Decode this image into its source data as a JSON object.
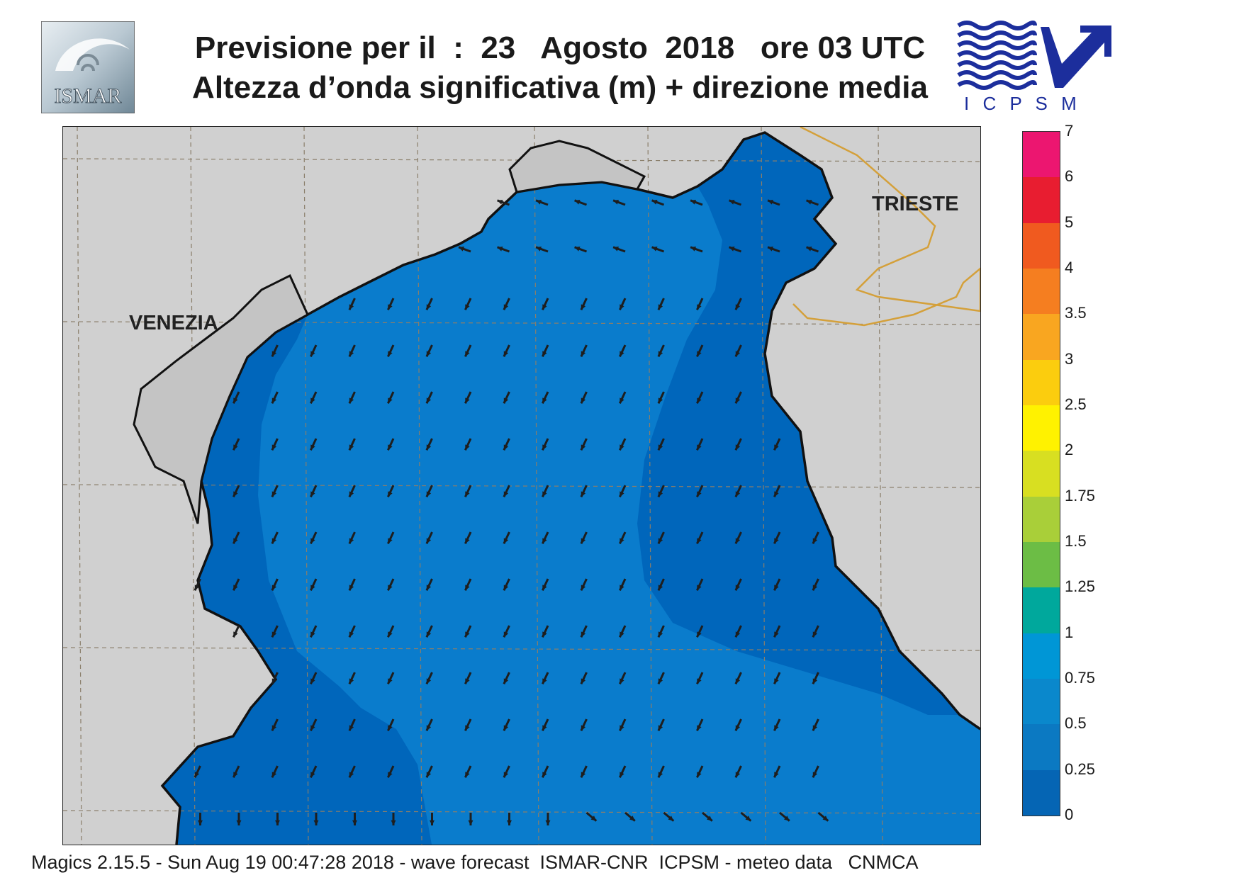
{
  "header": {
    "title_line1": "Previsione per il  :  23   Agosto  2018   ore 03 UTC",
    "title_line2": "Altezza d’onda significativa (m) + direzione media"
  },
  "logos": {
    "left": {
      "name": "ISMAR",
      "text": "ISMAR"
    },
    "right": {
      "name": "ICPSM",
      "text": "I C P S M",
      "color": "#1c2e9c"
    }
  },
  "map": {
    "cities": [
      {
        "name": "VENEZIA"
      },
      {
        "name": "TRIESTE"
      }
    ],
    "colors": {
      "land": "#d0d0d0",
      "sea_0_025": "#0066bb",
      "sea_025_05": "#0a7ccc",
      "coast": "#111111",
      "border": "#d4a03a",
      "grid": "#8a7e6a",
      "arrow": "#1e1e1e"
    }
  },
  "colorbar": {
    "labels": [
      "7",
      "6",
      "5",
      "4",
      "3.5",
      "3",
      "2.5",
      "2",
      "1.75",
      "1.5",
      "1.25",
      "1",
      "0.75",
      "0.5",
      "0.25",
      "0"
    ],
    "colors": [
      "#ec1670",
      "#e81d30",
      "#f05a1f",
      "#f57e20",
      "#f9a620",
      "#fbcd0e",
      "#fff200",
      "#d8df21",
      "#a9cf39",
      "#6cbd45",
      "#00a89c",
      "#0096d6",
      "#0a88cc",
      "#0b79c2",
      "#0565b4"
    ]
  },
  "footer": {
    "text": "Magics 2.15.5 - Sun Aug 19 00:47:28 2018 - wave forecast  ISMAR-CNR  ICPSM - meteo data   CNMCA"
  }
}
